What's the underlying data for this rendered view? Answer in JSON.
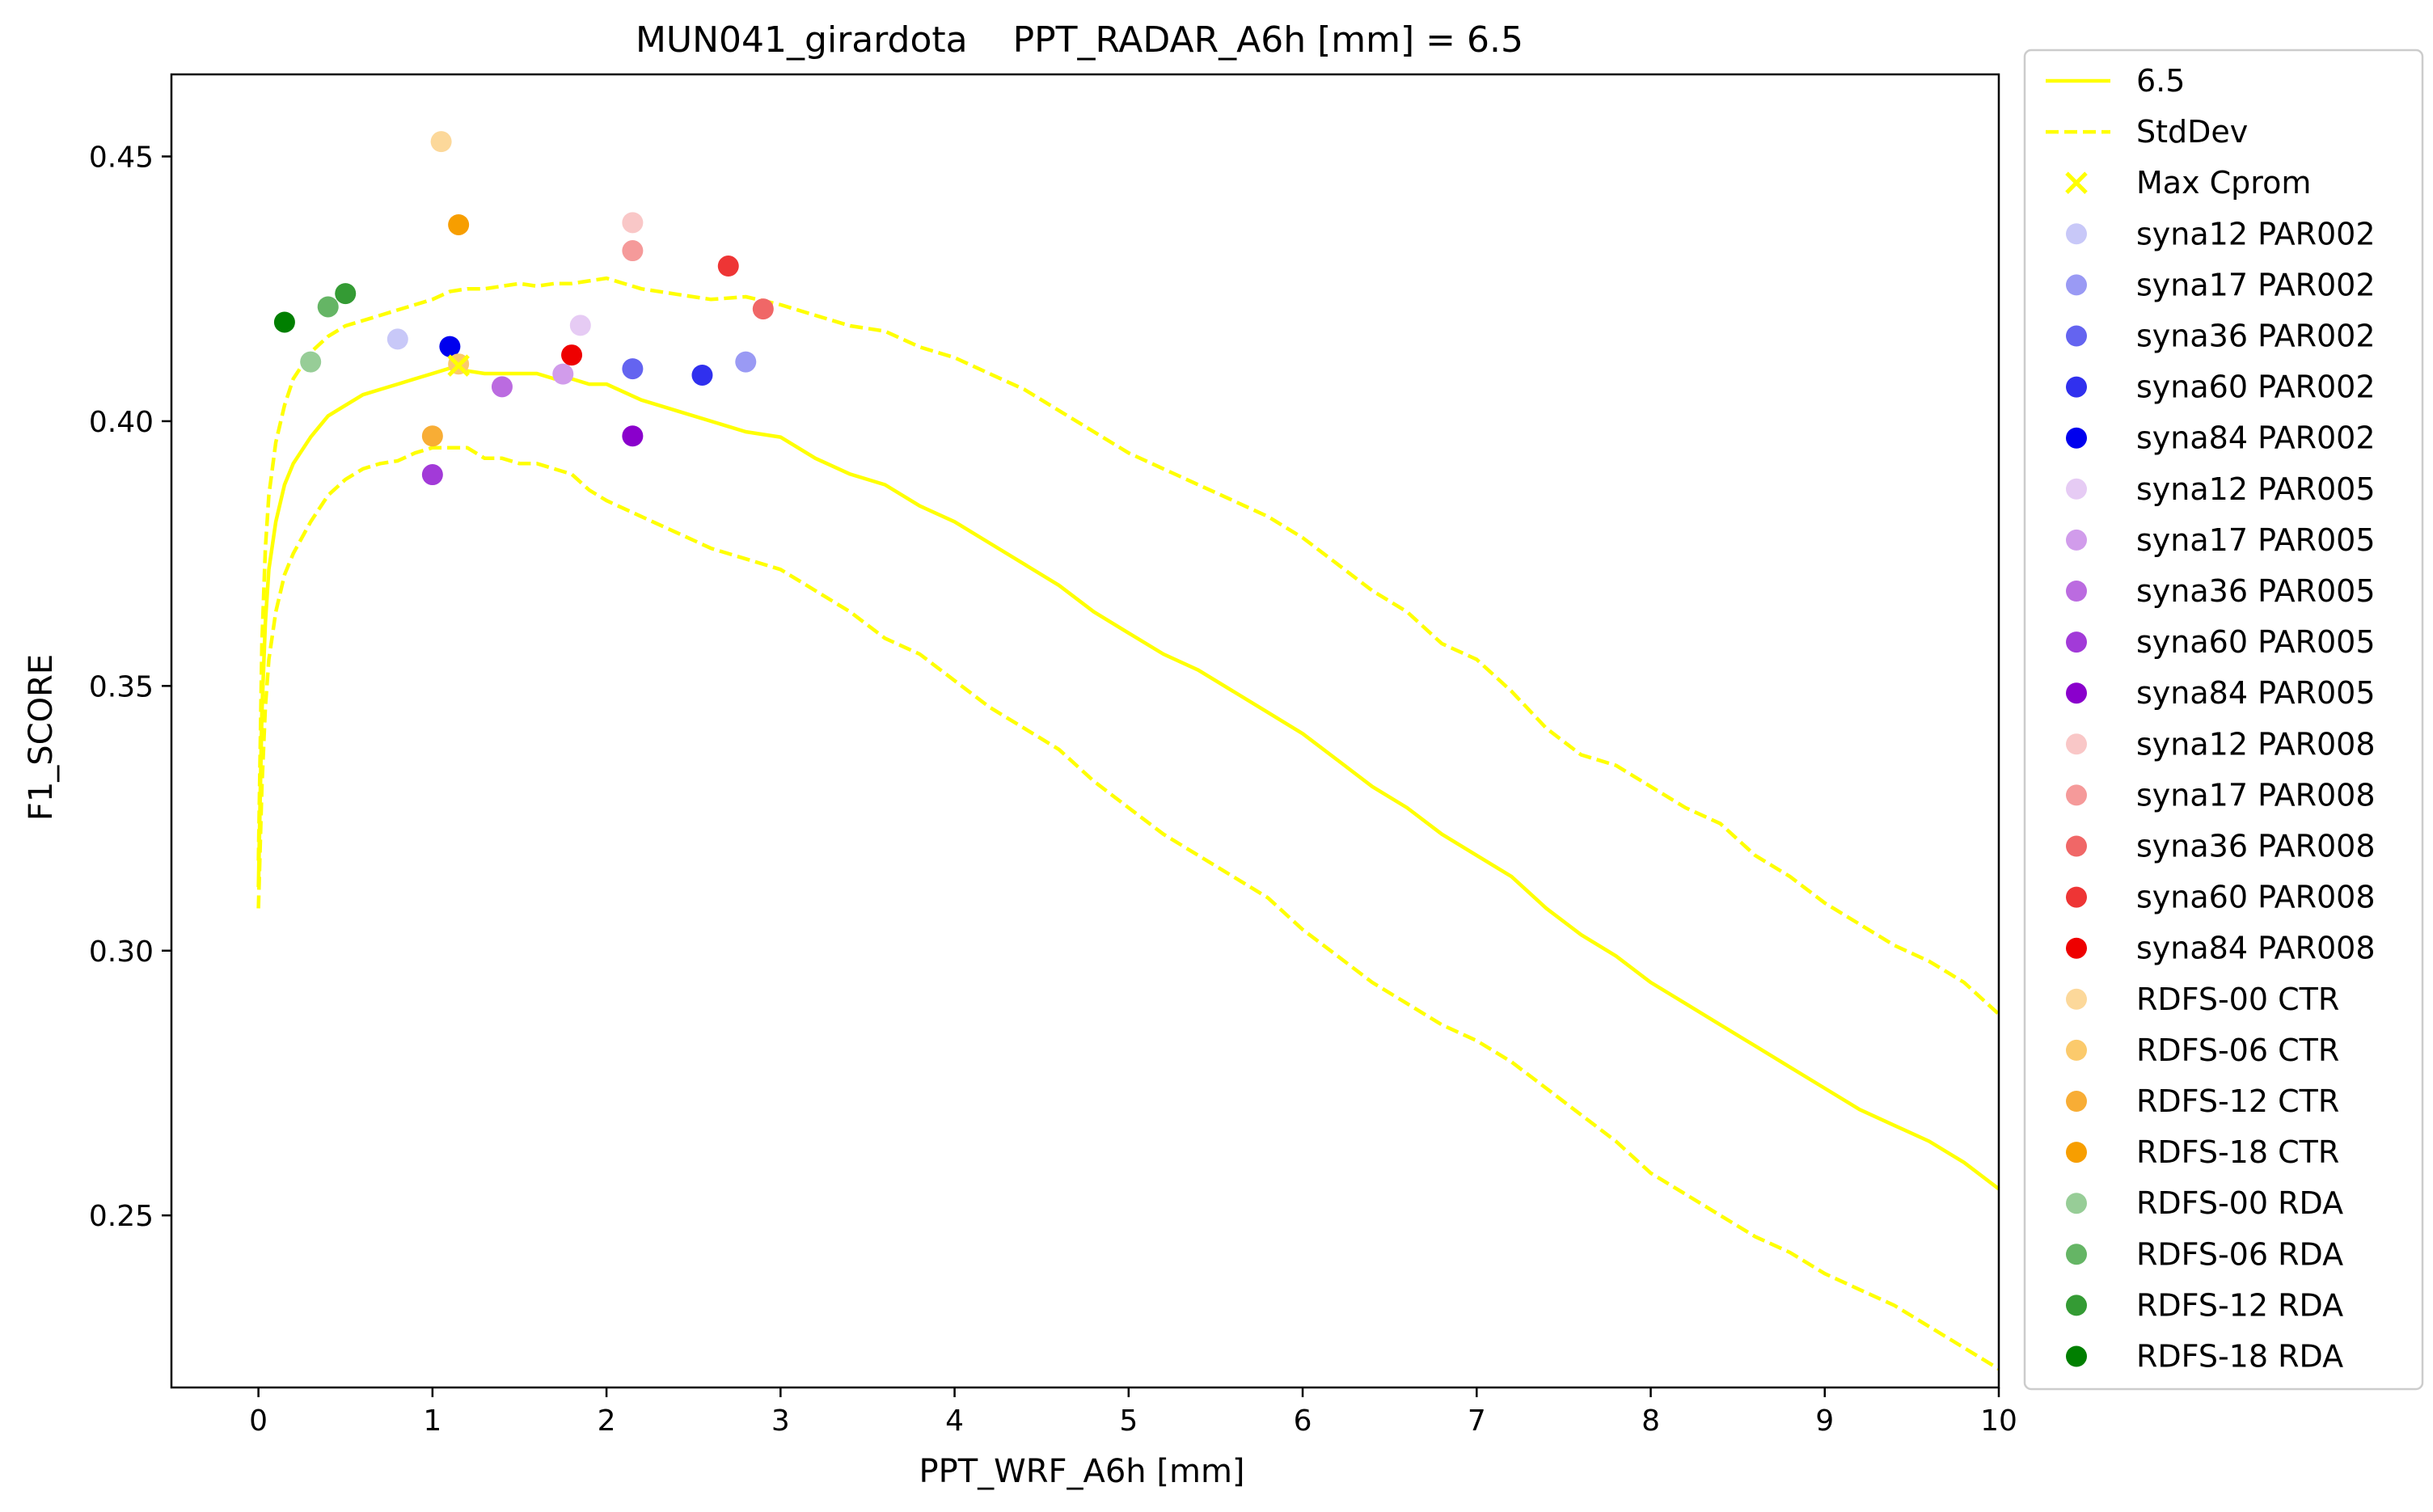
{
  "chart_data": {
    "type": "scatter",
    "title": "MUN041_girardota    PPT_RADAR_A6h [mm] = 6.5",
    "xlabel": "PPT_WRF_A6h [mm]",
    "ylabel": "F1_SCORE",
    "xlim": [
      -0.5,
      10
    ],
    "ylim": [
      0.2175,
      0.4655
    ],
    "xticks": [
      "0",
      "1",
      "2",
      "3",
      "4",
      "5",
      "6",
      "7",
      "8",
      "9",
      "10"
    ],
    "yticks": [
      "0.25",
      "0.30",
      "0.35",
      "0.40",
      "0.45"
    ],
    "grid": false,
    "legend_position": "outside-right",
    "lines": [
      {
        "name": "6.5",
        "color": "#ffff00",
        "style": "solid",
        "x": [
          0,
          0.02,
          0.04,
          0.06,
          0.1,
          0.15,
          0.2,
          0.3,
          0.4,
          0.5,
          0.6,
          0.7,
          0.8,
          0.9,
          1.0,
          1.1,
          1.2,
          1.3,
          1.4,
          1.5,
          1.6,
          1.7,
          1.8,
          1.9,
          2.0,
          2.2,
          2.4,
          2.6,
          2.8,
          3.0,
          3.2,
          3.4,
          3.6,
          3.8,
          4.0,
          4.2,
          4.4,
          4.6,
          4.8,
          5.0,
          5.2,
          5.4,
          5.6,
          5.8,
          6.0,
          6.2,
          6.4,
          6.6,
          6.8,
          7.0,
          7.2,
          7.4,
          7.6,
          7.8,
          8.0,
          8.2,
          8.4,
          8.6,
          8.8,
          9.0,
          9.2,
          9.4,
          9.6,
          9.8,
          10.0
        ],
        "y": [
          0.312,
          0.345,
          0.362,
          0.372,
          0.381,
          0.388,
          0.392,
          0.397,
          0.401,
          0.403,
          0.405,
          0.406,
          0.407,
          0.408,
          0.409,
          0.41,
          0.4095,
          0.409,
          0.409,
          0.409,
          0.409,
          0.408,
          0.408,
          0.407,
          0.407,
          0.404,
          0.402,
          0.4,
          0.398,
          0.397,
          0.393,
          0.39,
          0.388,
          0.384,
          0.381,
          0.377,
          0.373,
          0.369,
          0.364,
          0.36,
          0.356,
          0.353,
          0.349,
          0.345,
          0.341,
          0.336,
          0.331,
          0.327,
          0.322,
          0.318,
          0.314,
          0.308,
          0.303,
          0.299,
          0.294,
          0.29,
          0.286,
          0.282,
          0.278,
          0.274,
          0.27,
          0.267,
          0.264,
          0.26,
          0.255
        ]
      },
      {
        "name": "StdDev",
        "color": "#ffff00",
        "style": "dashed",
        "x": [
          0,
          0.02,
          0.04,
          0.06,
          0.1,
          0.15,
          0.2,
          0.3,
          0.4,
          0.5,
          0.6,
          0.7,
          0.8,
          0.9,
          1.0,
          1.1,
          1.2,
          1.3,
          1.4,
          1.5,
          1.6,
          1.7,
          1.8,
          1.9,
          2.0,
          2.2,
          2.4,
          2.6,
          2.8,
          3.0,
          3.2,
          3.4,
          3.6,
          3.8,
          4.0,
          4.2,
          4.4,
          4.6,
          4.8,
          5.0,
          5.2,
          5.4,
          5.6,
          5.8,
          6.0,
          6.2,
          6.4,
          6.6,
          6.8,
          7.0,
          7.2,
          7.4,
          7.6,
          7.8,
          8.0,
          8.2,
          8.4,
          8.6,
          8.8,
          9.0,
          9.2,
          9.4,
          9.6,
          9.8,
          10.0
        ],
        "y": [
          0.317,
          0.358,
          0.376,
          0.386,
          0.396,
          0.403,
          0.408,
          0.413,
          0.416,
          0.418,
          0.419,
          0.42,
          0.421,
          0.422,
          0.423,
          0.4245,
          0.425,
          0.425,
          0.4255,
          0.426,
          0.4255,
          0.426,
          0.426,
          0.4265,
          0.427,
          0.425,
          0.424,
          0.423,
          0.4235,
          0.422,
          0.42,
          0.418,
          0.417,
          0.414,
          0.412,
          0.409,
          0.406,
          0.402,
          0.398,
          0.394,
          0.391,
          0.388,
          0.385,
          0.382,
          0.378,
          0.373,
          0.368,
          0.364,
          0.358,
          0.355,
          0.349,
          0.342,
          0.337,
          0.335,
          0.331,
          0.327,
          0.324,
          0.318,
          0.314,
          0.309,
          0.305,
          0.301,
          0.298,
          0.294,
          0.288
        ]
      },
      {
        "name": "",
        "color": "#ffff00",
        "style": "dashed",
        "x": [
          0,
          0.02,
          0.04,
          0.06,
          0.1,
          0.15,
          0.2,
          0.3,
          0.4,
          0.5,
          0.6,
          0.7,
          0.8,
          0.9,
          1.0,
          1.1,
          1.2,
          1.3,
          1.4,
          1.5,
          1.6,
          1.7,
          1.8,
          1.9,
          2.0,
          2.2,
          2.4,
          2.6,
          2.8,
          3.0,
          3.2,
          3.4,
          3.6,
          3.8,
          4.0,
          4.2,
          4.4,
          4.6,
          4.8,
          5.0,
          5.2,
          5.4,
          5.6,
          5.8,
          6.0,
          6.2,
          6.4,
          6.6,
          6.8,
          7.0,
          7.2,
          7.4,
          7.6,
          7.8,
          8.0,
          8.2,
          8.4,
          8.6,
          8.8,
          9.0,
          9.2,
          9.4,
          9.6,
          9.8,
          10.0
        ],
        "y": [
          0.308,
          0.331,
          0.346,
          0.355,
          0.364,
          0.371,
          0.375,
          0.381,
          0.386,
          0.389,
          0.391,
          0.392,
          0.3925,
          0.394,
          0.395,
          0.395,
          0.395,
          0.393,
          0.393,
          0.392,
          0.392,
          0.391,
          0.39,
          0.387,
          0.385,
          0.382,
          0.379,
          0.376,
          0.374,
          0.372,
          0.368,
          0.364,
          0.359,
          0.356,
          0.351,
          0.346,
          0.342,
          0.338,
          0.332,
          0.327,
          0.322,
          0.318,
          0.314,
          0.31,
          0.304,
          0.299,
          0.294,
          0.29,
          0.286,
          0.283,
          0.279,
          0.274,
          0.269,
          0.264,
          0.258,
          0.254,
          0.25,
          0.246,
          0.243,
          0.239,
          0.236,
          0.233,
          0.229,
          0.225,
          0.221
        ]
      }
    ],
    "max_marker": {
      "name": "Max Cprom",
      "x": 1.15,
      "y": 0.4105,
      "color": "#ffff00"
    },
    "series": [
      {
        "name": "syna12 PAR002",
        "color": "#c8c8f8",
        "x": 0.8,
        "y": 0.4155
      },
      {
        "name": "syna17 PAR002",
        "color": "#9a9af4",
        "x": 2.8,
        "y": 0.4112
      },
      {
        "name": "syna36 PAR002",
        "color": "#6464f0",
        "x": 2.15,
        "y": 0.4099
      },
      {
        "name": "syna60 PAR002",
        "color": "#3030ee",
        "x": 2.55,
        "y": 0.4087
      },
      {
        "name": "syna84 PAR002",
        "color": "#0000ee",
        "x": 1.1,
        "y": 0.4141
      },
      {
        "name": "syna12 PAR005",
        "color": "#e6cbf4",
        "x": 1.85,
        "y": 0.4181
      },
      {
        "name": "syna17 PAR005",
        "color": "#d19ceb",
        "x": 1.75,
        "y": 0.4089
      },
      {
        "name": "syna36 PAR005",
        "color": "#bb6be0",
        "x": 1.4,
        "y": 0.4065
      },
      {
        "name": "syna60 PAR005",
        "color": "#a23ad8",
        "x": 1.0,
        "y": 0.3899
      },
      {
        "name": "syna84 PAR005",
        "color": "#8a00cc",
        "x": 2.15,
        "y": 0.3972
      },
      {
        "name": "syna12 PAR008",
        "color": "#f9c7c7",
        "x": 2.15,
        "y": 0.4375
      },
      {
        "name": "syna17 PAR008",
        "color": "#f59a9a",
        "x": 2.15,
        "y": 0.4322
      },
      {
        "name": "syna36 PAR008",
        "color": "#f06767",
        "x": 2.9,
        "y": 0.4212
      },
      {
        "name": "syna60 PAR008",
        "color": "#ee3535",
        "x": 2.7,
        "y": 0.4293
      },
      {
        "name": "syna84 PAR008",
        "color": "#ee0000",
        "x": 1.8,
        "y": 0.4125
      },
      {
        "name": "RDFS-00 CTR",
        "color": "#fcd89a",
        "x": 1.05,
        "y": 0.4528
      },
      {
        "name": "RDFS-06 CTR",
        "color": "#fbca6c",
        "x": 1.15,
        "y": 0.4108
      },
      {
        "name": "RDFS-12 CTR",
        "color": "#f8ad35",
        "x": 1.0,
        "y": 0.3972
      },
      {
        "name": "RDFS-18 CTR",
        "color": "#f79e00",
        "x": 1.15,
        "y": 0.4371
      },
      {
        "name": "RDFS-00 RDA",
        "color": "#97cd97",
        "x": 0.3,
        "y": 0.4112
      },
      {
        "name": "RDFS-06 RDA",
        "color": "#65b565",
        "x": 0.4,
        "y": 0.4216
      },
      {
        "name": "RDFS-12 RDA",
        "color": "#349b34",
        "x": 0.5,
        "y": 0.4241
      },
      {
        "name": "RDFS-18 RDA",
        "color": "#007f00",
        "x": 0.15,
        "y": 0.4187
      }
    ],
    "legend": [
      {
        "label": "6.5",
        "kind": "line",
        "color": "#ffff00"
      },
      {
        "label": "StdDev",
        "kind": "dashed",
        "color": "#ffff00"
      },
      {
        "label": "Max Cprom",
        "kind": "x",
        "color": "#ffff00"
      },
      {
        "label": "syna12 PAR002",
        "kind": "dot",
        "color": "#c8c8f8"
      },
      {
        "label": "syna17 PAR002",
        "kind": "dot",
        "color": "#9a9af4"
      },
      {
        "label": "syna36 PAR002",
        "kind": "dot",
        "color": "#6464f0"
      },
      {
        "label": "syna60 PAR002",
        "kind": "dot",
        "color": "#3030ee"
      },
      {
        "label": "syna84 PAR002",
        "kind": "dot",
        "color": "#0000ee"
      },
      {
        "label": "syna12 PAR005",
        "kind": "dot",
        "color": "#e6cbf4"
      },
      {
        "label": "syna17 PAR005",
        "kind": "dot",
        "color": "#d19ceb"
      },
      {
        "label": "syna36 PAR005",
        "kind": "dot",
        "color": "#bb6be0"
      },
      {
        "label": "syna60 PAR005",
        "kind": "dot",
        "color": "#a23ad8"
      },
      {
        "label": "syna84 PAR005",
        "kind": "dot",
        "color": "#8a00cc"
      },
      {
        "label": "syna12 PAR008",
        "kind": "dot",
        "color": "#f9c7c7"
      },
      {
        "label": "syna17 PAR008",
        "kind": "dot",
        "color": "#f59a9a"
      },
      {
        "label": "syna36 PAR008",
        "kind": "dot",
        "color": "#f06767"
      },
      {
        "label": "syna60 PAR008",
        "kind": "dot",
        "color": "#ee3535"
      },
      {
        "label": "syna84 PAR008",
        "kind": "dot",
        "color": "#ee0000"
      },
      {
        "label": "RDFS-00 CTR",
        "kind": "dot",
        "color": "#fcd89a"
      },
      {
        "label": "RDFS-06 CTR",
        "kind": "dot",
        "color": "#fbca6c"
      },
      {
        "label": "RDFS-12 CTR",
        "kind": "dot",
        "color": "#f8ad35"
      },
      {
        "label": "RDFS-18 CTR",
        "kind": "dot",
        "color": "#f79e00"
      },
      {
        "label": "RDFS-00 RDA",
        "kind": "dot",
        "color": "#97cd97"
      },
      {
        "label": "RDFS-06 RDA",
        "kind": "dot",
        "color": "#65b565"
      },
      {
        "label": "RDFS-12 RDA",
        "kind": "dot",
        "color": "#349b34"
      },
      {
        "label": "RDFS-18 RDA",
        "kind": "dot",
        "color": "#007f00"
      }
    ]
  }
}
